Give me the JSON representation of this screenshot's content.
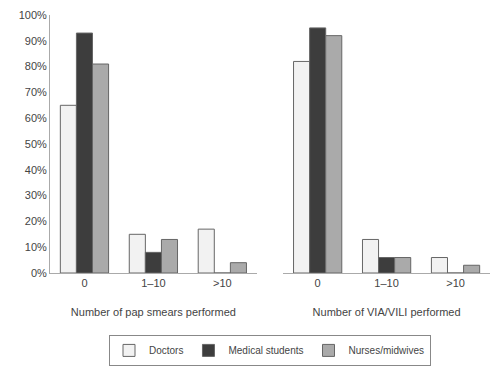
{
  "chart_data": [
    {
      "type": "bar",
      "xlabel": "Number of pap smears performed",
      "categories": [
        "0",
        "1–10",
        ">10"
      ],
      "series": [
        {
          "name": "Doctors",
          "color": "#f2f2f2",
          "values": [
            65,
            15,
            17
          ]
        },
        {
          "name": "Medical students",
          "color": "#3d3d3d",
          "values": [
            93,
            8,
            0
          ]
        },
        {
          "name": "Nurses/midwives",
          "color": "#aaaaaa",
          "values": [
            81,
            13,
            4
          ]
        }
      ],
      "ylim": [
        0,
        100
      ],
      "yticks": [
        {
          "value": 0,
          "label": "0%"
        },
        {
          "value": 10,
          "label": "10%"
        },
        {
          "value": 20,
          "label": "20%"
        },
        {
          "value": 30,
          "label": "30%"
        },
        {
          "value": 40,
          "label": "40%"
        },
        {
          "value": 50,
          "label": "50%"
        },
        {
          "value": 60,
          "label": "60%"
        },
        {
          "value": 70,
          "label": "70%"
        },
        {
          "value": 80,
          "label": "80%"
        },
        {
          "value": 90,
          "label": "90%"
        },
        {
          "value": 100,
          "label": "100%"
        }
      ],
      "grid": false,
      "legend": "bottom"
    },
    {
      "type": "bar",
      "xlabel": "Number of VIA/VILI performed",
      "categories": [
        "0",
        "1–10",
        ">10"
      ],
      "series": [
        {
          "name": "Doctors",
          "color": "#f2f2f2",
          "values": [
            82,
            13,
            6
          ]
        },
        {
          "name": "Medical students",
          "color": "#3d3d3d",
          "values": [
            95,
            6,
            0
          ]
        },
        {
          "name": "Nurses/midwives",
          "color": "#aaaaaa",
          "values": [
            92,
            6,
            3
          ]
        }
      ],
      "ylim": [
        0,
        100
      ],
      "yticks": [
        0,
        10,
        20,
        30,
        40,
        50,
        60,
        70,
        80,
        90,
        100
      ],
      "grid": false,
      "tick_labels": "x"
    }
  ]
}
